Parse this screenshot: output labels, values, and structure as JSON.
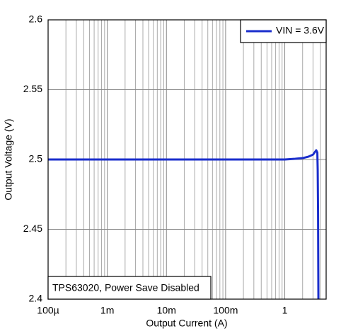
{
  "chart_data": {
    "type": "line",
    "xlabel": "Output Current (A)",
    "ylabel": "Output Voltage (V)",
    "annotation": "TPS63020, Power Save Disabled",
    "xscale": "log",
    "xlim": [
      0.0001,
      5
    ],
    "ylim": [
      2.4,
      2.6
    ],
    "xticks": [
      {
        "value": 0.0001,
        "label": "100µ"
      },
      {
        "value": 0.001,
        "label": "1m"
      },
      {
        "value": 0.01,
        "label": "10m"
      },
      {
        "value": 0.1,
        "label": "100m"
      },
      1
    ],
    "xminorticks": [
      0.0002,
      0.0003,
      0.0004,
      0.0005,
      0.0006,
      0.0007,
      0.0008,
      0.0009,
      0.002,
      0.003,
      0.004,
      0.005,
      0.006,
      0.007,
      0.008,
      0.009,
      0.02,
      0.03,
      0.04,
      0.05,
      0.06,
      0.07,
      0.08,
      0.09,
      0.2,
      0.3,
      0.4,
      0.5,
      0.6,
      0.7,
      0.8,
      0.9,
      2,
      3,
      4
    ],
    "yticks": [
      2.4,
      2.45,
      2.5,
      2.55,
      2.6
    ],
    "grid": true,
    "legend": "upper right",
    "x": [
      0.0001,
      0.001,
      0.01,
      0.1,
      1,
      1.5,
      2,
      2.5,
      3,
      3.4,
      3.55,
      3.6,
      3.65,
      3.7
    ],
    "series": [
      {
        "name": "VIN = 3.6V",
        "color": "#1a2ecc",
        "values": [
          2.5,
          2.5,
          2.5,
          2.5,
          2.5,
          2.5005,
          2.501,
          2.502,
          2.5035,
          2.5066,
          2.505,
          2.4925,
          2.462,
          2.4
        ]
      }
    ]
  }
}
